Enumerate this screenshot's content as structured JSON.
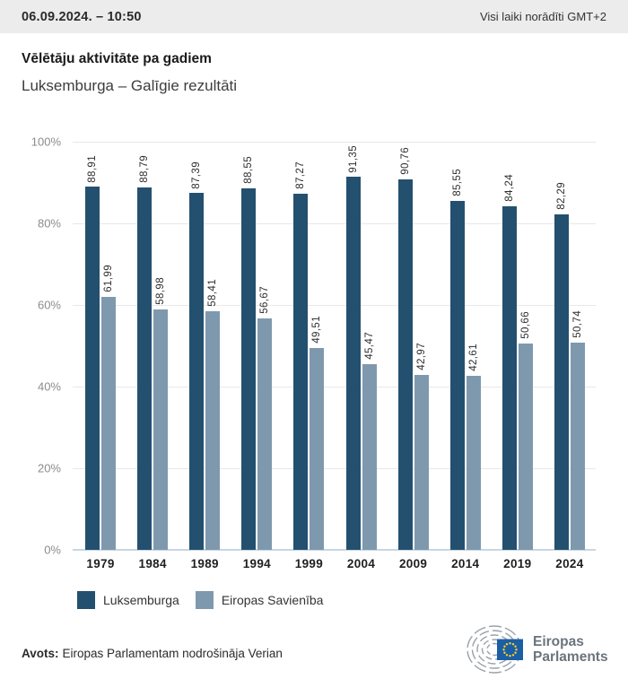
{
  "header": {
    "datetime": "06.09.2024. – 10:50",
    "timezone_note": "Visi laiki norādīti GMT+2"
  },
  "title": "Vēlētāju aktivitāte pa gadiem",
  "subtitle": "Luksemburga – Galīgie rezultāti",
  "chart_data": {
    "type": "bar",
    "categories": [
      "1979",
      "1984",
      "1989",
      "1994",
      "1999",
      "2004",
      "2009",
      "2014",
      "2019",
      "2024"
    ],
    "series": [
      {
        "name": "Luksemburga",
        "color": "#24506F",
        "values": [
          88.91,
          88.79,
          87.39,
          88.55,
          87.27,
          91.35,
          90.76,
          85.55,
          84.24,
          82.29
        ],
        "labels": [
          "88,91",
          "88,79",
          "87,39",
          "88,55",
          "87,27",
          "91,35",
          "90,76",
          "85,55",
          "84,24",
          "82,29"
        ]
      },
      {
        "name": "Eiropas Savienība",
        "color": "#7E99AE",
        "values": [
          61.99,
          58.98,
          58.41,
          56.67,
          49.51,
          45.47,
          42.97,
          42.61,
          50.66,
          50.74
        ],
        "labels": [
          "61,99",
          "58,98",
          "58,41",
          "56,67",
          "49,51",
          "45,47",
          "42,97",
          "42,61",
          "50,66",
          "50,74"
        ]
      }
    ],
    "title": "Vēlētāju aktivitāte pa gadiem",
    "xlabel": "",
    "ylabel": "",
    "ylim": [
      0,
      100
    ],
    "yticks": [
      "100%",
      "80%",
      "60%",
      "40%",
      "20%",
      "0%"
    ],
    "grid": true,
    "legend_position": "bottom",
    "value_labels_rotated": true
  },
  "legend": {
    "items": [
      {
        "label": "Luksemburga",
        "color": "#24506F"
      },
      {
        "label": "Eiropas Savienība",
        "color": "#7E99AE"
      }
    ]
  },
  "footer": {
    "source_label": "Avots:",
    "source_text": "Eiropas Parlamentam nodrošināja Verian"
  },
  "logo": {
    "line1": "Eiropas",
    "line2": "Parlaments"
  },
  "colors": {
    "series_dark": "#24506F",
    "series_light": "#7E99AE",
    "header_background": "#ececec",
    "gridline": "#e8e8e8",
    "axis_line": "#c8d6e3",
    "eu_flag_blue": "#1b5ea6",
    "eu_star_yellow": "#ffd617"
  }
}
